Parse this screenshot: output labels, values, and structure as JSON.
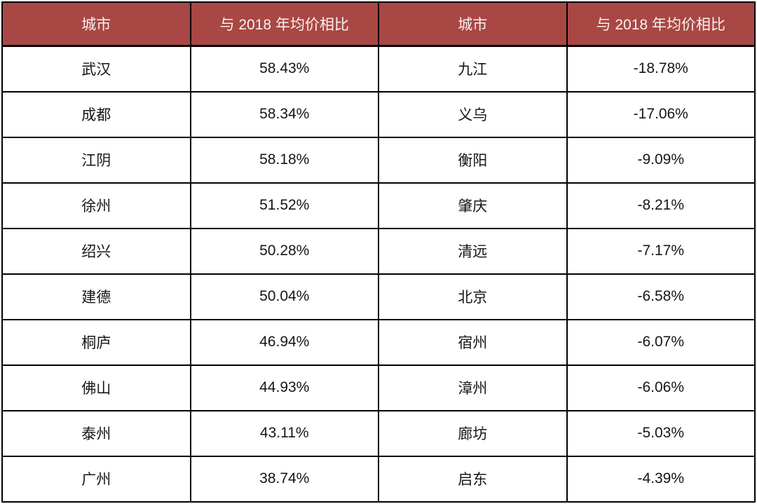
{
  "table": {
    "title_semantic": "city-price-comparison-table",
    "header": {
      "city_label": "城市",
      "value_label": "与 2018 年均价相比"
    },
    "rows": [
      {
        "left_city": "武汉",
        "left_value": "58.43%",
        "right_city": "九江",
        "right_value": "-18.78%"
      },
      {
        "left_city": "成都",
        "left_value": "58.34%",
        "right_city": "义乌",
        "right_value": "-17.06%"
      },
      {
        "left_city": "江阴",
        "left_value": "58.18%",
        "right_city": "衡阳",
        "right_value": "-9.09%"
      },
      {
        "left_city": "徐州",
        "left_value": "51.52%",
        "right_city": "肇庆",
        "right_value": "-8.21%"
      },
      {
        "left_city": "绍兴",
        "left_value": "50.28%",
        "right_city": "清远",
        "right_value": "-7.17%"
      },
      {
        "left_city": "建德",
        "left_value": "50.04%",
        "right_city": "北京",
        "right_value": "-6.58%"
      },
      {
        "left_city": "桐庐",
        "left_value": "46.94%",
        "right_city": "宿州",
        "right_value": "-6.07%"
      },
      {
        "left_city": "佛山",
        "left_value": "44.93%",
        "right_city": "漳州",
        "right_value": "-6.06%"
      },
      {
        "left_city": "泰州",
        "left_value": "43.11%",
        "right_city": "廊坊",
        "right_value": "-5.03%"
      },
      {
        "left_city": "广州",
        "left_value": "38.74%",
        "right_city": "启东",
        "right_value": "-4.39%"
      }
    ],
    "colors": {
      "header_bg": "#a94744",
      "header_text": "#f8f2f1",
      "border": "#000000",
      "body_text": "#161616"
    }
  }
}
